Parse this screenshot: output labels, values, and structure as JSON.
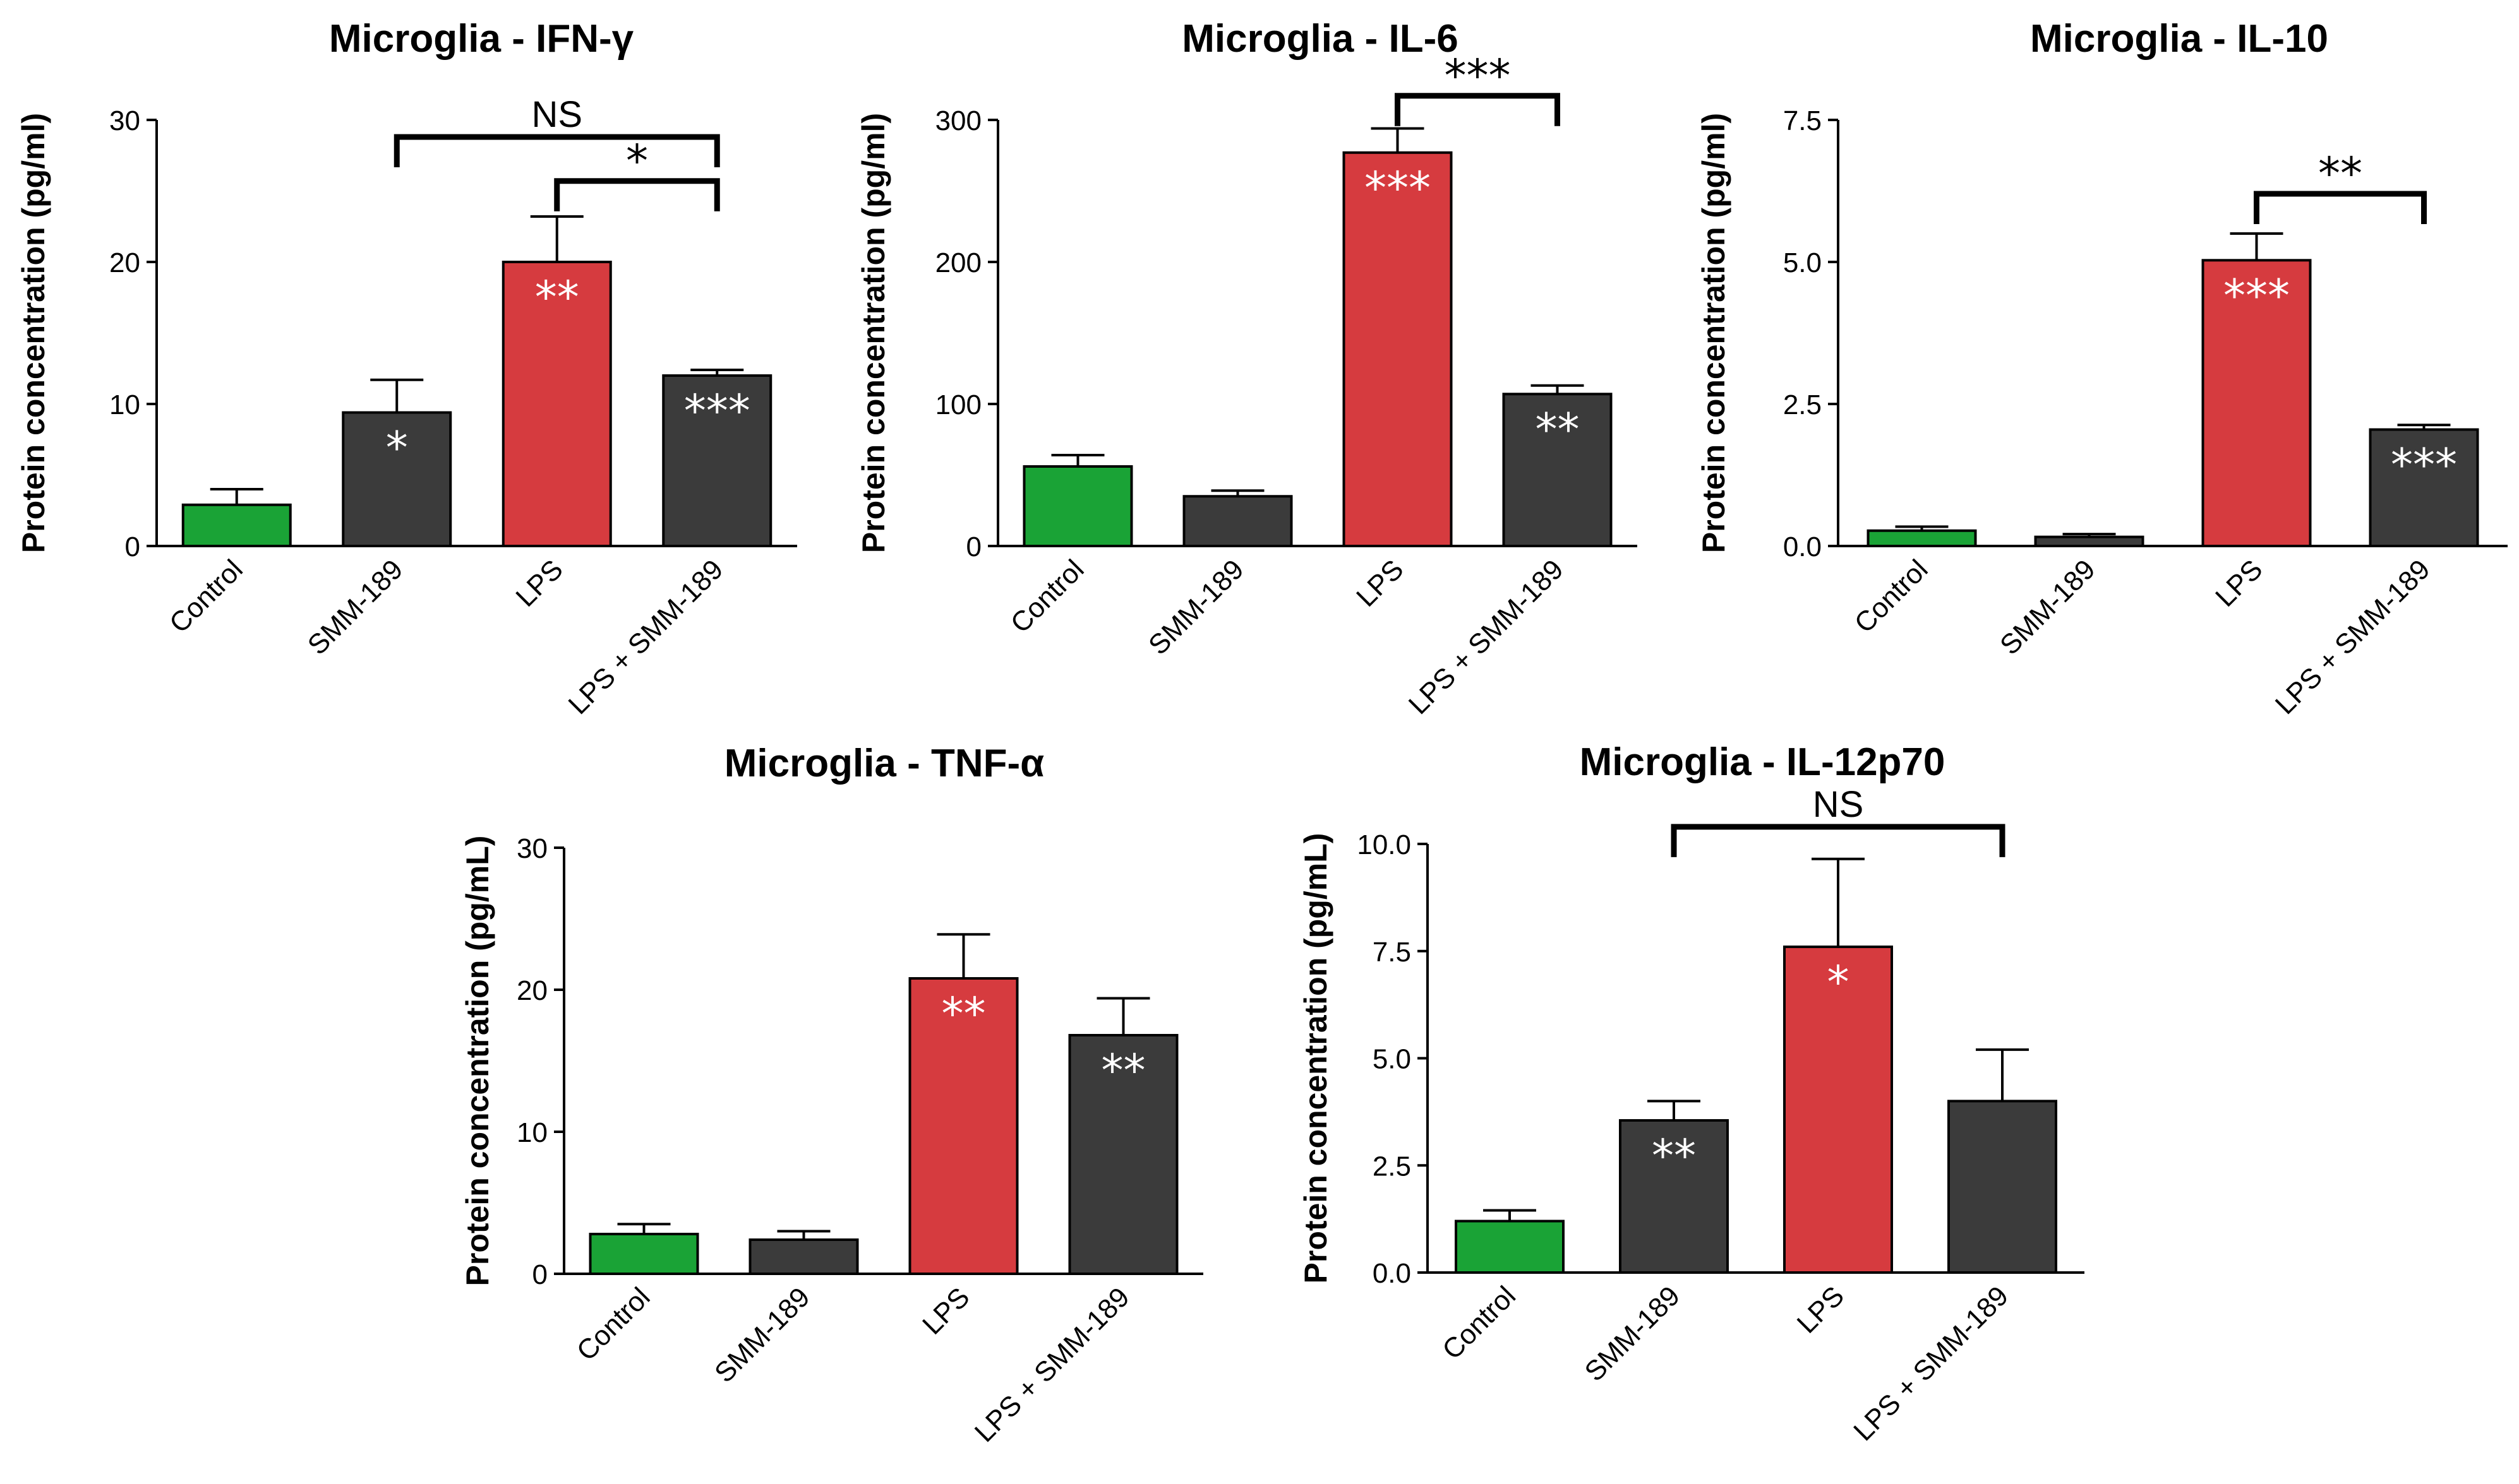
{
  "colors": {
    "control": "#1aa336",
    "treatment": "#3b3b3b",
    "lps": "#d63b3f"
  },
  "chart_data": [
    {
      "type": "bar",
      "title": "Microglia - IFN-γ",
      "ylabel": "Protein concentration (pg/ml)",
      "xlabel": "",
      "categories": [
        "Control",
        "SMM-189",
        "LPS",
        "LPS + SMM-189"
      ],
      "values": [
        2.9,
        9.4,
        20.0,
        12.0
      ],
      "errors": [
        1.1,
        2.3,
        3.2,
        0.4
      ],
      "bar_colors": [
        "control",
        "treatment",
        "lps",
        "treatment"
      ],
      "significance": [
        "",
        "*",
        "**",
        "***"
      ],
      "ylim": [
        0,
        30
      ],
      "yticks": [
        0,
        10,
        20,
        30
      ],
      "ytick_labels": [
        "0",
        "10",
        "20",
        "30"
      ],
      "comparisons": [
        {
          "from": 1,
          "to": 3,
          "label": "NS",
          "level": 28.8
        },
        {
          "from": 2,
          "to": 3,
          "label": "*",
          "level": 25.7
        }
      ]
    },
    {
      "type": "bar",
      "title": "Microglia - IL-6",
      "ylabel": "Protein concentration (pg/ml)",
      "xlabel": "",
      "categories": [
        "Control",
        "SMM-189",
        "LPS",
        "LPS + SMM-189"
      ],
      "values": [
        56,
        35,
        277,
        107
      ],
      "errors": [
        8,
        4,
        17,
        6
      ],
      "bar_colors": [
        "control",
        "treatment",
        "lps",
        "treatment"
      ],
      "significance": [
        "",
        "",
        "***",
        "**"
      ],
      "ylim": [
        0,
        300
      ],
      "yticks": [
        0,
        100,
        200,
        300
      ],
      "ytick_labels": [
        "0",
        "100",
        "200",
        "300"
      ],
      "comparisons": [
        {
          "from": 2,
          "to": 3,
          "label": "***",
          "level": 317
        }
      ]
    },
    {
      "type": "bar",
      "title": "Microglia - IL-10",
      "ylabel": "Protein concentration (pg/ml)",
      "xlabel": "",
      "categories": [
        "Control",
        "SMM-189",
        "LPS",
        "LPS + SMM-189"
      ],
      "values": [
        0.27,
        0.16,
        5.03,
        2.05
      ],
      "errors": [
        0.07,
        0.05,
        0.47,
        0.08
      ],
      "bar_colors": [
        "control",
        "treatment",
        "lps",
        "treatment"
      ],
      "significance": [
        "",
        "",
        "***",
        "***"
      ],
      "ylim": [
        0,
        7.5
      ],
      "yticks": [
        0,
        2.5,
        5,
        7.5
      ],
      "ytick_labels": [
        "0.0",
        "2.5",
        "5.0",
        "7.5"
      ],
      "comparisons": [
        {
          "from": 2,
          "to": 3,
          "label": "**",
          "level": 6.2
        }
      ]
    },
    {
      "type": "bar",
      "title": "Microglia - TNF-α",
      "ylabel": "Protein concentration  (pg/mL)",
      "xlabel": "",
      "categories": [
        "Control",
        "SMM-189",
        "LPS",
        "LPS + SMM-189"
      ],
      "values": [
        2.8,
        2.4,
        20.8,
        16.8
      ],
      "errors": [
        0.7,
        0.6,
        3.1,
        2.6
      ],
      "bar_colors": [
        "control",
        "treatment",
        "lps",
        "treatment"
      ],
      "significance": [
        "",
        "",
        "**",
        "**"
      ],
      "ylim": [
        0,
        30
      ],
      "yticks": [
        0,
        10,
        20,
        30
      ],
      "ytick_labels": [
        "0",
        "10",
        "20",
        "30"
      ],
      "comparisons": []
    },
    {
      "type": "bar",
      "title": "Microglia - IL-12p70",
      "ylabel": "Protein concentration  (pg/mL)",
      "xlabel": "",
      "categories": [
        "Control",
        "SMM-189",
        "LPS",
        "LPS + SMM-189"
      ],
      "values": [
        1.2,
        3.55,
        7.6,
        4.0
      ],
      "errors": [
        0.25,
        0.45,
        2.05,
        1.2
      ],
      "bar_colors": [
        "control",
        "treatment",
        "lps",
        "treatment"
      ],
      "significance": [
        "",
        "**",
        "*",
        ""
      ],
      "ylim": [
        0,
        10
      ],
      "yticks": [
        0,
        2.5,
        5,
        7.5,
        10
      ],
      "ytick_labels": [
        "0.0",
        "2.5",
        "5.0",
        "7.5",
        "10.0"
      ],
      "comparisons": [
        {
          "from": 1,
          "to": 3,
          "label": "NS",
          "level": 10.4
        }
      ]
    }
  ]
}
